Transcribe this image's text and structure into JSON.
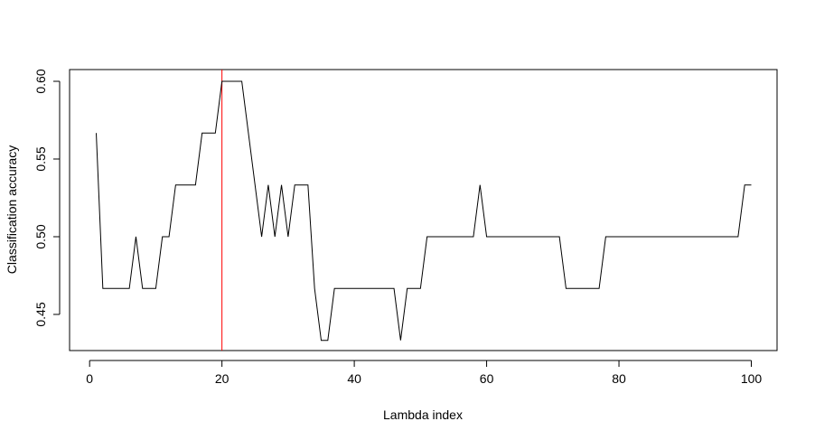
{
  "chart_data": {
    "type": "line",
    "title": "",
    "xlabel": "Lambda index",
    "ylabel": "Classification accuracy",
    "xlim": [
      1,
      100
    ],
    "ylim": [
      0.4333,
      0.6
    ],
    "x_ticks": [
      0,
      20,
      40,
      60,
      80,
      100
    ],
    "y_ticks": [
      0.45,
      0.5,
      0.55,
      0.6
    ],
    "x_tick_labels": [
      "0",
      "20",
      "40",
      "60",
      "80",
      "100"
    ],
    "y_tick_labels": [
      "0.45",
      "0.50",
      "0.55",
      "0.60"
    ],
    "grid": false,
    "legend": "none",
    "line_color": "#000000",
    "reference_line": {
      "x": 20,
      "color": "#ff0000"
    },
    "series": [
      {
        "x": [
          1,
          2,
          3,
          4,
          5,
          6,
          7,
          8,
          9,
          10,
          11,
          12,
          13,
          14,
          15,
          16,
          17,
          18,
          19,
          20,
          21,
          22,
          23,
          24,
          25,
          26,
          27,
          28,
          29,
          30,
          31,
          32,
          33,
          34,
          35,
          36,
          37,
          38,
          39,
          40,
          41,
          42,
          43,
          44,
          45,
          46,
          47,
          48,
          49,
          50,
          51,
          52,
          53,
          54,
          55,
          56,
          57,
          58,
          59,
          60,
          61,
          62,
          63,
          64,
          65,
          66,
          67,
          68,
          69,
          70,
          71,
          72,
          73,
          74,
          75,
          76,
          77,
          78,
          79,
          80,
          81,
          82,
          83,
          84,
          85,
          86,
          87,
          88,
          89,
          90,
          91,
          92,
          93,
          94,
          95,
          96,
          97,
          98,
          99,
          100
        ],
        "values": [
          0.5667,
          0.4667,
          0.4667,
          0.4667,
          0.4667,
          0.4667,
          0.5,
          0.4667,
          0.4667,
          0.4667,
          0.5,
          0.5,
          0.5333,
          0.5333,
          0.5333,
          0.5333,
          0.5667,
          0.5667,
          0.5667,
          0.6,
          0.6,
          0.6,
          0.6,
          0.5667,
          0.5333,
          0.5,
          0.5333,
          0.5,
          0.5333,
          0.5,
          0.5333,
          0.5333,
          0.5333,
          0.4667,
          0.4333,
          0.4333,
          0.4667,
          0.4667,
          0.4667,
          0.4667,
          0.4667,
          0.4667,
          0.4667,
          0.4667,
          0.4667,
          0.4667,
          0.4333,
          0.4667,
          0.4667,
          0.4667,
          0.5,
          0.5,
          0.5,
          0.5,
          0.5,
          0.5,
          0.5,
          0.5,
          0.5333,
          0.5,
          0.5,
          0.5,
          0.5,
          0.5,
          0.5,
          0.5,
          0.5,
          0.5,
          0.5,
          0.5,
          0.5,
          0.4667,
          0.4667,
          0.4667,
          0.4667,
          0.4667,
          0.4667,
          0.5,
          0.5,
          0.5,
          0.5,
          0.5,
          0.5,
          0.5,
          0.5,
          0.5,
          0.5,
          0.5,
          0.5,
          0.5,
          0.5,
          0.5,
          0.5,
          0.5,
          0.5,
          0.5,
          0.5,
          0.5,
          0.5333,
          0.5333
        ]
      }
    ]
  }
}
